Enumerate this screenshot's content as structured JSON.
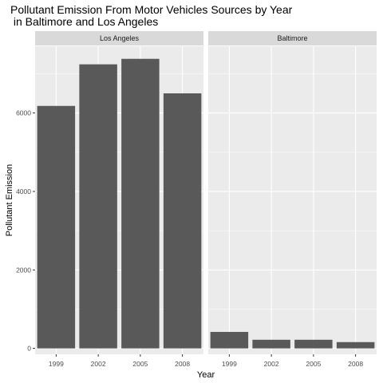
{
  "chart_data": {
    "type": "bar",
    "title_line1": "Pollutant Emission From Motor Vehicles Sources by Year",
    "title_line2": " in Baltimore and Los Angeles",
    "xlabel": "Year",
    "ylabel": "Pollutant Emission",
    "categories": [
      "1999",
      "2002",
      "2005",
      "2008"
    ],
    "ylim": [
      -150,
      7700
    ],
    "y_ticks": [
      0,
      2000,
      4000,
      6000
    ],
    "y_tick_labels": [
      "0",
      "2000",
      "4000",
      "6000"
    ],
    "grid": true,
    "facets": [
      {
        "name": "Los Angeles",
        "values": [
          6180,
          7240,
          7380,
          6500
        ]
      },
      {
        "name": "Baltimore",
        "values": [
          420,
          220,
          220,
          160
        ]
      }
    ],
    "colors": {
      "bar": "#595959",
      "panel_background": "#ebebeb",
      "strip_background": "#d9d9d9",
      "grid": "#ffffff"
    }
  }
}
